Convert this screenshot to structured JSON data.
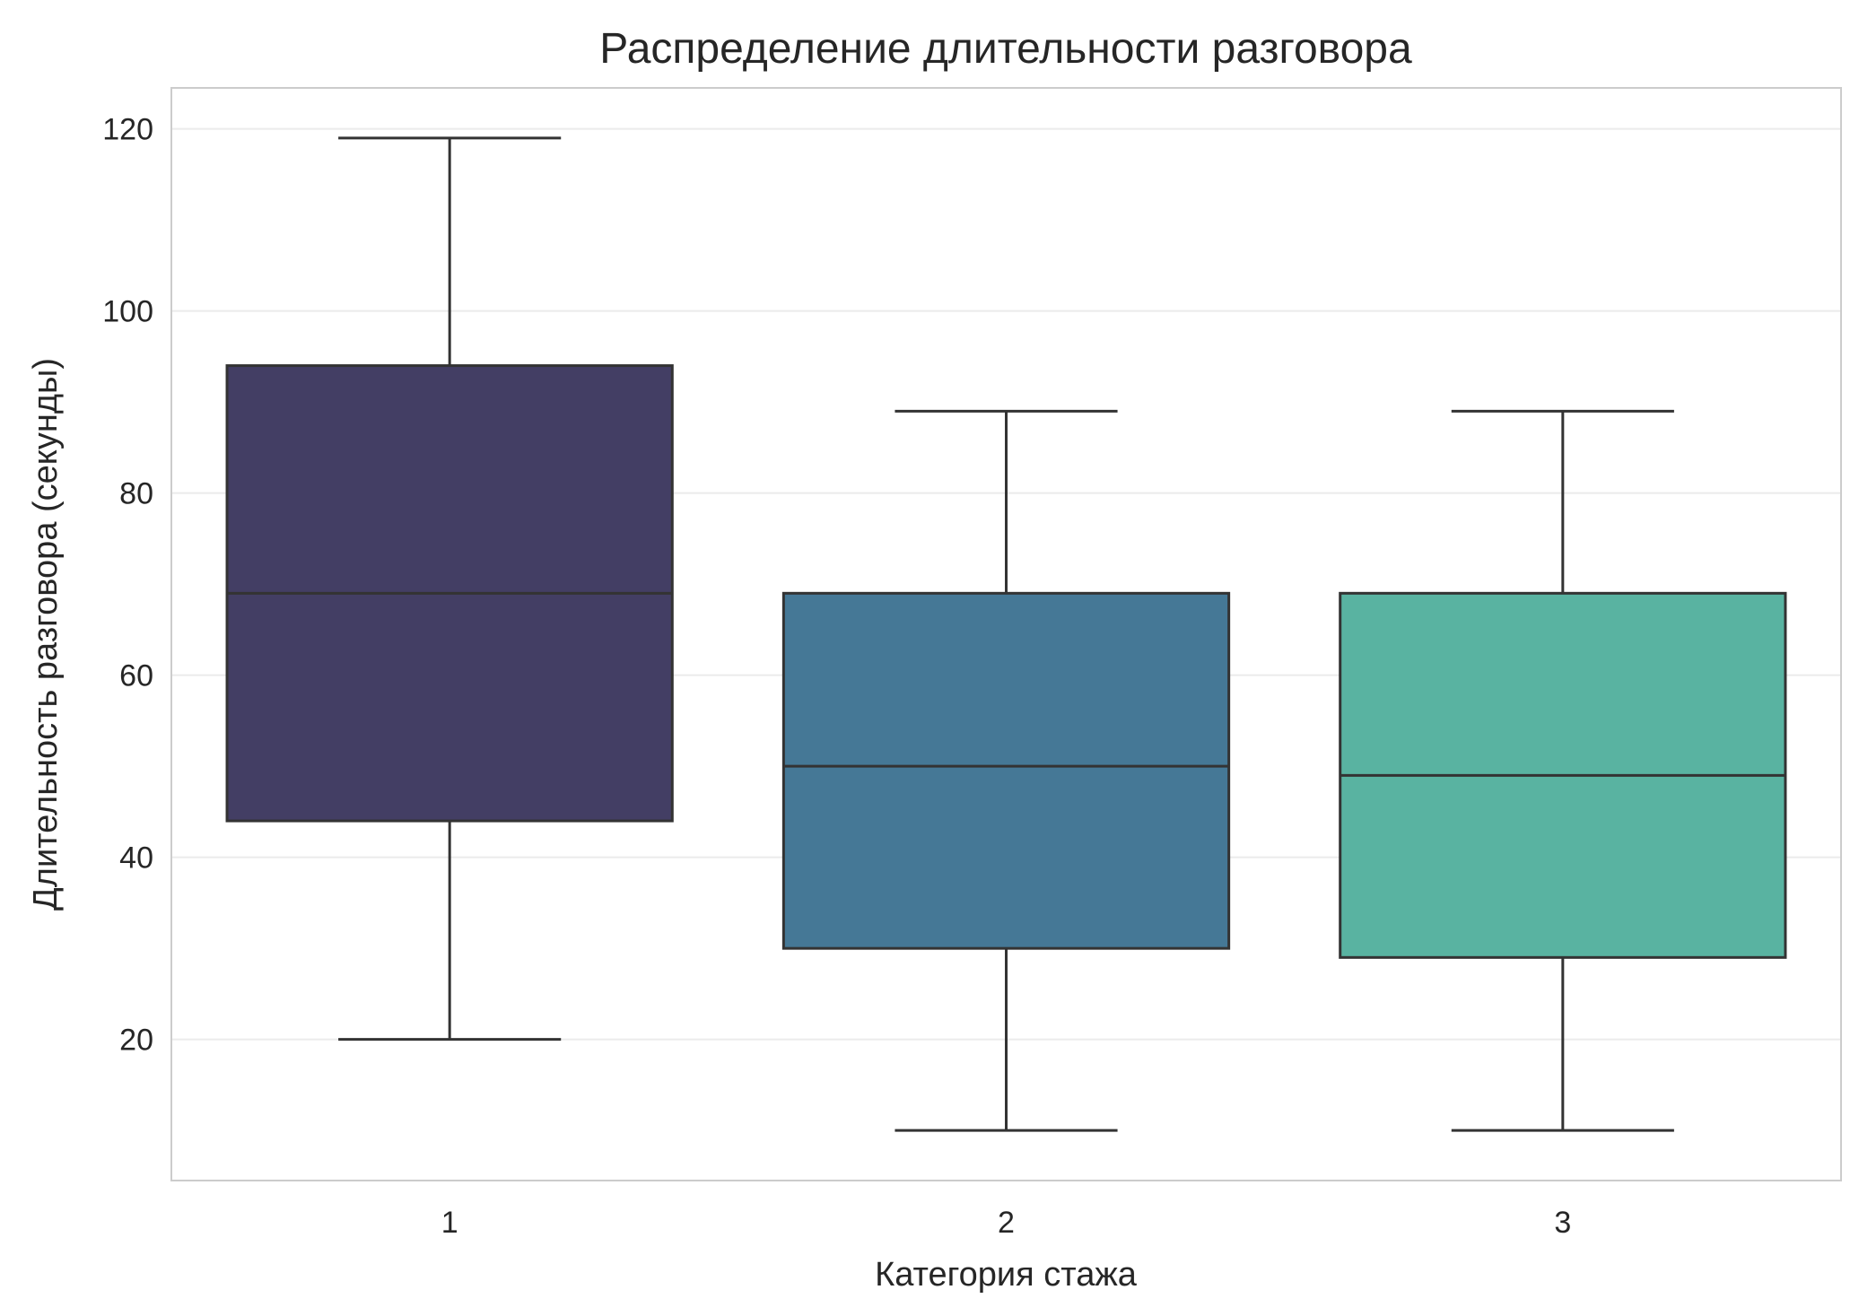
{
  "chart_data": {
    "type": "box",
    "title": "Распределение длительности разговора",
    "xlabel": "Категория стажа",
    "ylabel": "Длительность разговора (секунды)",
    "ylim": [
      4.5,
      124.5
    ],
    "yticks": [
      20,
      40,
      60,
      80,
      100,
      120
    ],
    "grid": "horizontal",
    "categories": [
      "1",
      "2",
      "3"
    ],
    "boxes": [
      {
        "category": "1",
        "whisker_low": 20,
        "q1": 44,
        "median": 69,
        "q3": 94,
        "whisker_high": 119,
        "color": "#433e64"
      },
      {
        "category": "2",
        "whisker_low": 10,
        "q1": 30,
        "median": 50,
        "q3": 69,
        "whisker_high": 89,
        "color": "#457896"
      },
      {
        "category": "3",
        "whisker_low": 10,
        "q1": 29,
        "median": 49,
        "q3": 69,
        "whisker_high": 89,
        "color": "#59b3a1"
      }
    ],
    "colors": {
      "line": "#333333",
      "grid": "#ebebeb",
      "frame": "#cccccc",
      "text": "#262626"
    }
  }
}
